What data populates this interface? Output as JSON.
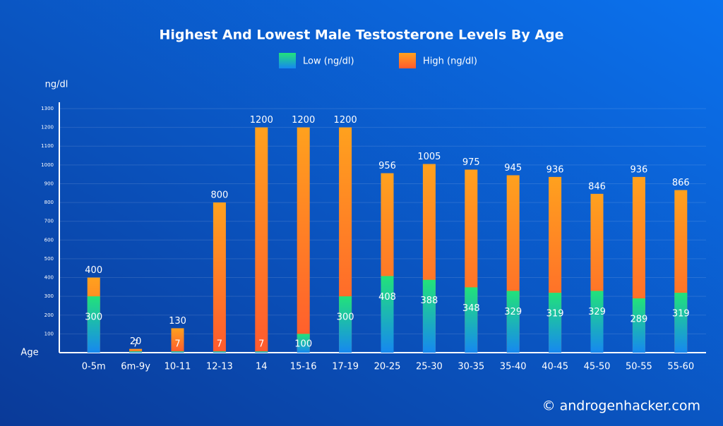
{
  "chart_data": {
    "type": "bar",
    "title": "Highest And Lowest Male Testosterone Levels By Age",
    "y_label": "ng/dl",
    "x_label": "Age",
    "categories": [
      "0-5m",
      "6m-9y",
      "10-11",
      "12-13",
      "14",
      "15-16",
      "17-19",
      "20-25",
      "25-30",
      "30-35",
      "35-40",
      "40-45",
      "45-50",
      "50-55",
      "55-60"
    ],
    "series": [
      {
        "name": "Low (ng/dl)",
        "color": "#22e27a",
        "values": [
          300,
          7,
          7,
          7,
          7,
          100,
          300,
          408,
          388,
          348,
          329,
          319,
          329,
          289,
          319
        ]
      },
      {
        "name": "High (ng/dl)",
        "color": "#ffa11e",
        "values": [
          400,
          20,
          130,
          800,
          1200,
          1200,
          1200,
          956,
          1005,
          975,
          945,
          936,
          846,
          936,
          866
        ]
      }
    ],
    "ylim": [
      0,
      1300
    ],
    "yticks": [
      100,
      200,
      300,
      400,
      500,
      600,
      700,
      800,
      900,
      1000,
      1100,
      1200,
      1300
    ],
    "grid": true,
    "legend": "top",
    "footer": "© androgenhacker.com"
  }
}
